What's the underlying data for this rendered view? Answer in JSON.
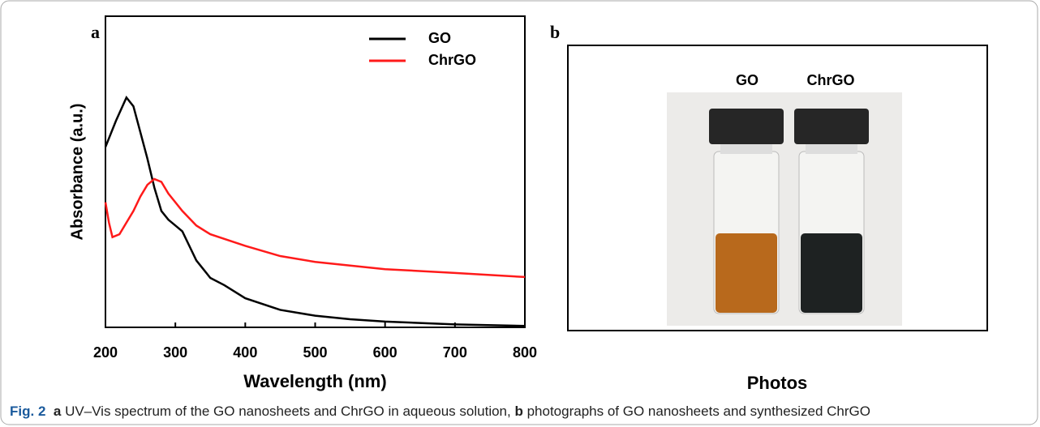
{
  "chart_data": {
    "type": "line",
    "panel_label": "a",
    "x_label": "Wavelength (nm)",
    "y_label": "Absorbance (a.u.)",
    "xlim": [
      200,
      800
    ],
    "xticks": [
      200,
      300,
      400,
      500,
      600,
      700,
      800
    ],
    "ylim": [
      0,
      1
    ],
    "legend": "upper right",
    "series": [
      {
        "name": "GO",
        "color": "#000000",
        "x": [
          200,
          215,
          230,
          240,
          250,
          260,
          270,
          280,
          290,
          300,
          310,
          320,
          330,
          340,
          350,
          370,
          400,
          450,
          500,
          550,
          600,
          700,
          800
        ],
        "values": [
          0.62,
          0.71,
          0.79,
          0.76,
          0.67,
          0.58,
          0.48,
          0.4,
          0.37,
          0.35,
          0.33,
          0.28,
          0.23,
          0.2,
          0.17,
          0.145,
          0.1,
          0.06,
          0.04,
          0.028,
          0.02,
          0.01,
          0.005
        ]
      },
      {
        "name": "ChrGO",
        "color": "#ff1a1a",
        "x": [
          200,
          205,
          210,
          220,
          230,
          240,
          250,
          260,
          270,
          280,
          290,
          310,
          330,
          350,
          400,
          450,
          500,
          600,
          700,
          800
        ],
        "values": [
          0.43,
          0.36,
          0.31,
          0.32,
          0.36,
          0.4,
          0.45,
          0.49,
          0.51,
          0.5,
          0.46,
          0.4,
          0.35,
          0.32,
          0.28,
          0.245,
          0.225,
          0.2,
          0.187,
          0.173
        ]
      }
    ]
  },
  "photo_panel": {
    "panel_label": "b",
    "labels": [
      "GO",
      "ChrGO"
    ],
    "x_label": "Photos"
  },
  "caption": {
    "figure": "Fig. 2",
    "part_a": "a",
    "text_a": "UV–Vis spectrum of the GO nanosheets and ChrGO in aqueous solution,",
    "part_b": "b",
    "text_b": "photographs of GO nanosheets and synthesized ChrGO"
  }
}
